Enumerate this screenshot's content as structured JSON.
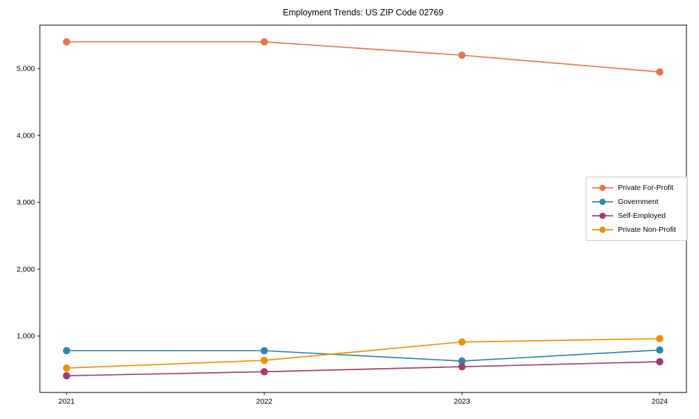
{
  "figure": {
    "background": "#ffffff",
    "axis_color": "#000000",
    "text_color": "#000000",
    "legend_border_color": "#cccccc"
  },
  "chart_data": {
    "type": "line",
    "title": "Employment Trends: US ZIP Code 02769",
    "xlabel": "",
    "ylabel": "",
    "x": [
      2021,
      2022,
      2023,
      2024
    ],
    "x_tick_labels": [
      "2021",
      "2022",
      "2023",
      "2024"
    ],
    "series": [
      {
        "name": "Private For-Profit",
        "color": "#E8764C",
        "marker": "circle",
        "values": [
          5400,
          5400,
          5200,
          4950
        ]
      },
      {
        "name": "Government",
        "color": "#2E86AB",
        "marker": "circle",
        "values": [
          780,
          780,
          625,
          790
        ]
      },
      {
        "name": "Self-Employed",
        "color": "#A23B72",
        "marker": "circle",
        "values": [
          405,
          465,
          540,
          615
        ]
      },
      {
        "name": "Private Non-Profit",
        "color": "#F18F01",
        "marker": "circle",
        "values": [
          520,
          635,
          910,
          960
        ]
      }
    ],
    "yticks": [
      1000,
      2000,
      3000,
      4000,
      5000
    ],
    "ytick_labels": [
      "1,000",
      "2,000",
      "3,000",
      "4,000",
      "5,000"
    ],
    "ylim": [
      155,
      5650
    ],
    "xlim": [
      2020.865,
      2024.135
    ],
    "grid": false,
    "legend": {
      "position": "center-right",
      "entries": [
        "Private For-Profit",
        "Government",
        "Self-Employed",
        "Private Non-Profit"
      ]
    }
  }
}
